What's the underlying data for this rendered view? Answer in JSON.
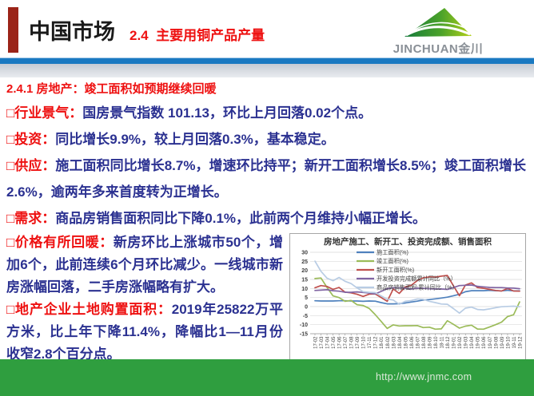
{
  "header": {
    "title": "中国市场",
    "subtitle": "2.4  主要用铜产品产量",
    "logo_text": "JINCHUAN金川"
  },
  "slide": {
    "heading": "2.4.1 房地产：竣工面积如预期继续回暖",
    "bullets": [
      {
        "label": "□行业景气：",
        "text": "国房景气指数 101.13，环比上月回落0.02个点。"
      },
      {
        "label": "□投资：",
        "text": "同比增长9.9%，较上月回落0.3%，基本稳定。"
      },
      {
        "label": "□供应：",
        "text": "施工面积同比增长8.7%，增速环比持平；新开工面积增长8.5%；竣工面积增长2.6%，逾两年多来首度转为正增长。"
      },
      {
        "label": "□需求：",
        "text": "商品房销售面积同比下降0.1%，此前两个月维持小幅正增长。"
      },
      {
        "label": "□价格有所回暖：",
        "text": "新房环比上涨城市50个，增加6个，此前连续6个月环比减少。一线城市新房涨幅回落，二手房涨幅略有扩大。"
      },
      {
        "label": "□地产企业土地购置面积：",
        "text": "2019年25822万平方米，比上年下降11.4%，降幅比1—11月份收窄2.8个百分点。"
      }
    ]
  },
  "footer": {
    "url": "http://www.jnmc.com"
  },
  "colors": {
    "accent_red": "#ee1111",
    "body_blue": "#2b3191",
    "title_black": "#1a1a1a",
    "header_blue_line": "#1a79c1",
    "red_bar": "#9b2418",
    "footer_green": "#2f9e3f",
    "logo_gray": "#8a9097",
    "logo_green_dark": "#157a3b",
    "logo_green_light": "#b5d119"
  },
  "chart_data": {
    "type": "line",
    "title": "房地产施工、新开工、投资完成额、销售面积",
    "xlabel": "",
    "ylabel": "",
    "ylim": [
      -15,
      30
    ],
    "ytick_step": 5,
    "grid": true,
    "legend_position": "top-center-stacked",
    "x": [
      "17-02",
      "17-03",
      "17-04",
      "17-05",
      "17-06",
      "17-07",
      "17-08",
      "17-09",
      "17-10",
      "17-11",
      "17-12",
      "18-01",
      "18-02",
      "18-03",
      "18-04",
      "18-05",
      "18-06",
      "18-07",
      "18-08",
      "18-09",
      "18-10",
      "18-11",
      "18-12",
      "19-01",
      "19-02",
      "19-03",
      "19-04",
      "19-05",
      "19-06",
      "19-07",
      "19-08",
      "19-09",
      "19-10",
      "19-11",
      "19-12"
    ],
    "series": [
      {
        "name": "施工面积(%)",
        "color": "#4f81bd",
        "values": [
          3.2,
          3.1,
          3.1,
          3.1,
          3.2,
          3.2,
          3.1,
          3.1,
          2.9,
          3.1,
          3.0,
          2.2,
          1.5,
          1.5,
          1.6,
          2.0,
          2.5,
          3.0,
          3.6,
          3.9,
          4.3,
          4.7,
          5.2,
          6.0,
          6.8,
          8.2,
          8.8,
          8.8,
          8.8,
          9.0,
          8.8,
          8.7,
          9.0,
          8.7,
          8.7
        ]
      },
      {
        "name": "竣工面积(%)",
        "color": "#9bbb59",
        "values": [
          15.5,
          15.8,
          10.6,
          5.9,
          5.0,
          2.9,
          3.4,
          1.0,
          0.6,
          -1.0,
          -4.4,
          -8.2,
          -12.1,
          -10.1,
          -10.7,
          -10.6,
          -10.6,
          -10.5,
          -11.6,
          -11.4,
          -12.5,
          -12.3,
          -7.8,
          -9.8,
          -11.9,
          -10.8,
          -10.3,
          -12.4,
          -12.5,
          -11.3,
          -10.0,
          -8.6,
          -5.5,
          -4.5,
          2.6
        ]
      },
      {
        "name": "新开工面积(%)",
        "color": "#c0504d",
        "values": [
          10.4,
          11.6,
          11.1,
          9.5,
          10.6,
          8.0,
          7.6,
          6.8,
          5.6,
          6.9,
          7.0,
          5.0,
          2.9,
          9.7,
          7.3,
          10.8,
          11.8,
          14.4,
          15.9,
          16.4,
          16.3,
          16.8,
          17.2,
          11.5,
          6.0,
          11.9,
          13.1,
          10.5,
          10.1,
          9.5,
          8.9,
          8.6,
          10.0,
          8.6,
          8.5
        ]
      },
      {
        "name": "开发投资完成额累计同比（%）",
        "color": "#8064a2",
        "values": [
          8.9,
          9.1,
          9.3,
          8.8,
          8.5,
          7.9,
          7.9,
          8.1,
          7.8,
          7.5,
          7.0,
          8.4,
          9.9,
          10.4,
          10.3,
          10.2,
          9.7,
          10.2,
          10.1,
          9.9,
          9.7,
          9.7,
          9.5,
          10.5,
          11.6,
          11.8,
          11.9,
          11.2,
          10.9,
          10.6,
          10.5,
          10.5,
          10.3,
          10.2,
          9.9
        ]
      },
      {
        "name": "商品房销售面积:累计同比（%）",
        "color": "#b8cce4",
        "values": [
          25.1,
          19.5,
          15.7,
          14.3,
          16.1,
          14.0,
          12.7,
          10.3,
          8.2,
          7.9,
          7.7,
          5.9,
          4.1,
          3.6,
          1.3,
          2.9,
          3.3,
          4.2,
          4.0,
          2.9,
          2.2,
          1.4,
          1.3,
          -1.1,
          -3.6,
          -0.9,
          -0.3,
          -1.6,
          -1.8,
          -1.3,
          -0.6,
          -0.1,
          0.1,
          0.2,
          -0.1
        ]
      }
    ]
  }
}
